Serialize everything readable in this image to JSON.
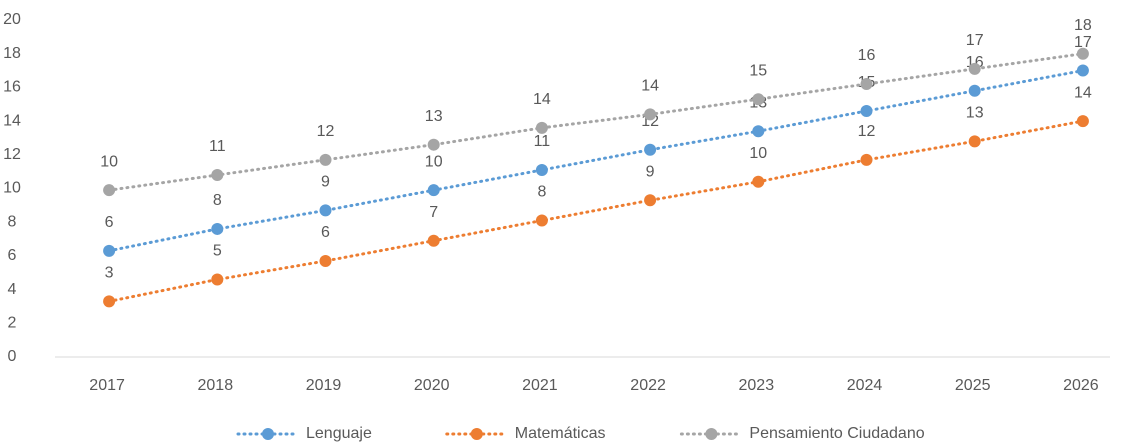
{
  "chart_data": {
    "type": "line",
    "categories": [
      "2017",
      "2018",
      "2019",
      "2020",
      "2021",
      "2022",
      "2023",
      "2024",
      "2025",
      "2026"
    ],
    "series": [
      {
        "name": "Lenguaje",
        "color": "#5b9bd5",
        "values": [
          6.3,
          7.6,
          8.7,
          9.9,
          11.1,
          12.3,
          13.4,
          14.6,
          15.8,
          17.0
        ],
        "value_labels": [
          "6",
          "8",
          "9",
          "10",
          "11",
          "12",
          "13",
          "15",
          "16",
          "17"
        ]
      },
      {
        "name": "Matemáticas",
        "color": "#ed7d31",
        "values": [
          3.3,
          4.6,
          5.7,
          6.9,
          8.1,
          9.3,
          10.4,
          11.7,
          12.8,
          14.0
        ],
        "value_labels": [
          "3",
          "5",
          "6",
          "7",
          "8",
          "9",
          "10",
          "12",
          "13",
          "14"
        ]
      },
      {
        "name": "Pensamiento Ciudadano",
        "color": "#a5a5a5",
        "values": [
          9.9,
          10.8,
          11.7,
          12.6,
          13.6,
          14.4,
          15.3,
          16.2,
          17.1,
          18.0
        ],
        "value_labels": [
          "10",
          "11",
          "12",
          "13",
          "14",
          "14",
          "15",
          "16",
          "17",
          "18"
        ]
      }
    ],
    "ylim": [
      0,
      20
    ],
    "yticks": [
      0,
      2,
      4,
      6,
      8,
      10,
      12,
      14,
      16,
      18,
      20
    ],
    "grid": false,
    "legend": "bottom"
  }
}
